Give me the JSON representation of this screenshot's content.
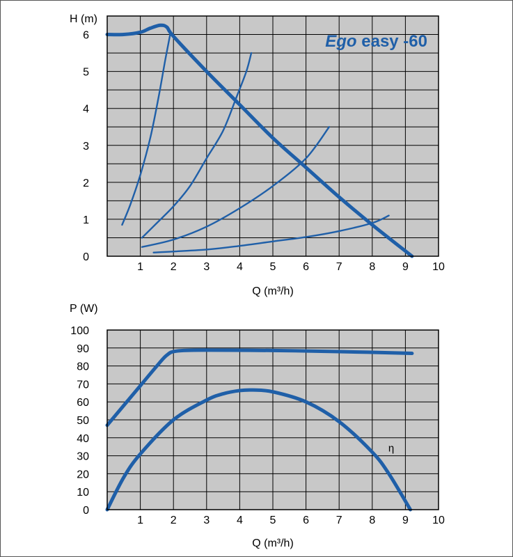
{
  "chart_data": [
    {
      "type": "line",
      "title": "Ego easy -60",
      "title_italic_part": "Ego",
      "title_rest": " easy -60",
      "ylabel": "H (m)",
      "xlabel": "Q (m³/h)",
      "xlim": [
        0,
        10
      ],
      "ylim": [
        0,
        6.5
      ],
      "x_ticks": [
        1,
        2,
        3,
        4,
        5,
        6,
        7,
        8,
        9,
        10
      ],
      "y_ticks": [
        0,
        1,
        2,
        3,
        4,
        5,
        6
      ],
      "grid": true,
      "legend": "none",
      "colors": {
        "curve": "#1f5fa8",
        "plot_bg": "#c8c8c8",
        "grid": "#000000"
      },
      "series": [
        {
          "role": "pump-curve",
          "values": [
            [
              0,
              6.0
            ],
            [
              0.5,
              6.0
            ],
            [
              1.0,
              6.06
            ],
            [
              1.3,
              6.17
            ],
            [
              1.6,
              6.25
            ],
            [
              1.8,
              6.2
            ],
            [
              2.0,
              5.95
            ],
            [
              3,
              5.0
            ],
            [
              4,
              4.1
            ],
            [
              5,
              3.2
            ],
            [
              6,
              2.4
            ],
            [
              7,
              1.6
            ],
            [
              8,
              0.85
            ],
            [
              9.2,
              0
            ]
          ]
        },
        {
          "role": "system-curve",
          "values": [
            [
              0.45,
              0.85
            ],
            [
              0.7,
              1.4
            ],
            [
              1.0,
              2.2
            ],
            [
              1.3,
              3.2
            ],
            [
              1.55,
              4.3
            ],
            [
              1.75,
              5.3
            ],
            [
              1.9,
              6.0
            ]
          ]
        },
        {
          "role": "system-curve",
          "values": [
            [
              1.05,
              0.5
            ],
            [
              1.5,
              0.9
            ],
            [
              2.0,
              1.35
            ],
            [
              2.5,
              1.9
            ],
            [
              3.0,
              2.65
            ],
            [
              3.5,
              3.4
            ],
            [
              3.9,
              4.3
            ],
            [
              4.2,
              5.0
            ],
            [
              4.35,
              5.5
            ]
          ]
        },
        {
          "role": "system-curve",
          "values": [
            [
              1.05,
              0.25
            ],
            [
              2,
              0.45
            ],
            [
              3,
              0.8
            ],
            [
              4,
              1.3
            ],
            [
              5,
              1.9
            ],
            [
              6,
              2.65
            ],
            [
              6.7,
              3.5
            ]
          ]
        },
        {
          "role": "system-curve",
          "values": [
            [
              1.4,
              0.1
            ],
            [
              3,
              0.18
            ],
            [
              4,
              0.28
            ],
            [
              5,
              0.4
            ],
            [
              6,
              0.52
            ],
            [
              7,
              0.68
            ],
            [
              8,
              0.9
            ],
            [
              8.5,
              1.1
            ]
          ]
        }
      ]
    },
    {
      "type": "line",
      "ylabel": "P (W)",
      "xlabel": "Q (m³/h)",
      "xlim": [
        0,
        10
      ],
      "ylim": [
        0,
        100
      ],
      "x_ticks": [
        1,
        2,
        3,
        4,
        5,
        6,
        7,
        8,
        9,
        10
      ],
      "y_ticks": [
        0,
        10,
        20,
        30,
        40,
        50,
        60,
        70,
        80,
        90,
        100
      ],
      "grid": true,
      "legend": "none",
      "annotation": "η",
      "annotation_at": [
        8.4,
        34
      ],
      "colors": {
        "curve": "#1f5fa8",
        "plot_bg": "#c8c8c8",
        "grid": "#000000"
      },
      "series": [
        {
          "role": "power",
          "values": [
            [
              0,
              47
            ],
            [
              0.5,
              58
            ],
            [
              1.0,
              69
            ],
            [
              1.5,
              80
            ],
            [
              1.8,
              86
            ],
            [
              2.1,
              88.3
            ],
            [
              3,
              88.8
            ],
            [
              5,
              88.6
            ],
            [
              7,
              88
            ],
            [
              9.2,
              87
            ]
          ]
        },
        {
          "role": "efficiency",
          "values": [
            [
              0,
              0
            ],
            [
              0.5,
              18
            ],
            [
              1,
              31
            ],
            [
              2,
              50
            ],
            [
              3,
              61
            ],
            [
              3.5,
              64.5
            ],
            [
              4,
              66.3
            ],
            [
              4.4,
              66.6
            ],
            [
              5,
              65.6
            ],
            [
              6,
              60
            ],
            [
              7,
              49
            ],
            [
              8,
              32
            ],
            [
              8.5,
              20
            ],
            [
              9.15,
              0
            ]
          ]
        }
      ]
    }
  ]
}
